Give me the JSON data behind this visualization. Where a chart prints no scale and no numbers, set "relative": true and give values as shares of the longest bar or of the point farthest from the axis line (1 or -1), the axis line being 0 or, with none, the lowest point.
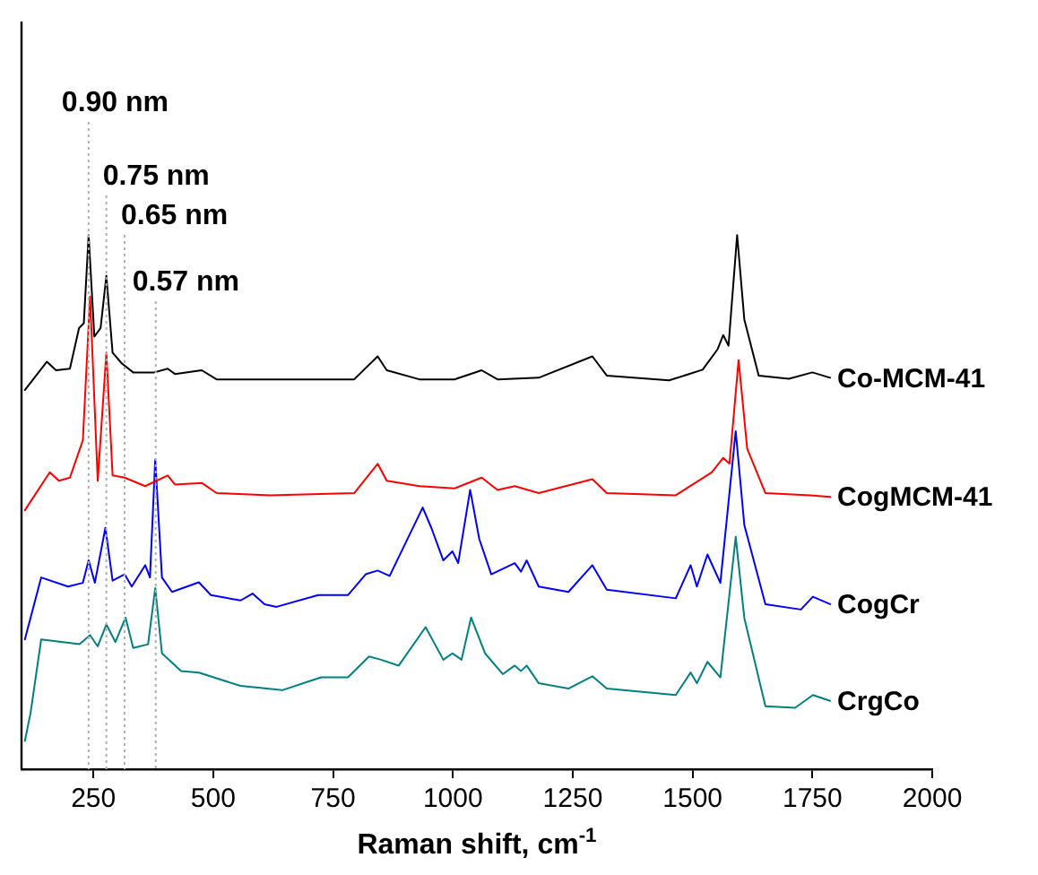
{
  "chart_data": {
    "type": "line",
    "relative": true,
    "xlabel": "Raman shift, cm$^{-1}$",
    "xlim": [
      100,
      2000
    ],
    "xticks": [
      250,
      500,
      750,
      1000,
      1250,
      1500,
      1750,
      2000
    ],
    "grid": false,
    "legend": false,
    "marker": "none",
    "line_style": "solid",
    "ref_lines": [
      {
        "axis": "x",
        "value": 240,
        "label": "0.90 nm",
        "color": "#b0b0b0",
        "line_style": "dotted"
      },
      {
        "axis": "x",
        "value": 277,
        "label": "0.75 nm",
        "color": "#b0b0b0",
        "line_style": "dotted"
      },
      {
        "axis": "x",
        "value": 315,
        "label": "0.65 nm",
        "color": "#b0b0b0",
        "line_style": "dotted"
      },
      {
        "axis": "x",
        "value": 380,
        "label": "0.57 nm",
        "color": "#b0b0b0",
        "line_style": "dotted"
      }
    ],
    "series": [
      {
        "name": "Co-MCM-41",
        "color": "#000000",
        "x": [
          107,
          153,
          172,
          201,
          220,
          230,
          240,
          252,
          265,
          277,
          290,
          309,
          333,
          377,
          405,
          420,
          476,
          507,
          619,
          794,
          843,
          862,
          930,
          1004,
          1060,
          1093,
          1179,
          1291,
          1321,
          1451,
          1521,
          1552,
          1564,
          1575,
          1593,
          1608,
          1638,
          1701,
          1750,
          1787
        ],
        "values": [
          0.71,
          0.763,
          0.747,
          0.75,
          0.826,
          0.835,
          1.0,
          0.81,
          0.826,
          0.924,
          0.78,
          0.76,
          0.743,
          0.743,
          0.75,
          0.74,
          0.747,
          0.73,
          0.73,
          0.73,
          0.773,
          0.747,
          0.73,
          0.73,
          0.747,
          0.73,
          0.733,
          0.773,
          0.737,
          0.728,
          0.748,
          0.786,
          0.813,
          0.793,
          1.0,
          0.842,
          0.737,
          0.731,
          0.743,
          0.733
        ]
      },
      {
        "name": "CogMCM-41",
        "color": "#ff0000",
        "x": [
          107,
          159,
          178,
          201,
          228,
          243,
          259,
          277,
          290,
          315,
          358,
          405,
          420,
          476,
          507,
          619,
          794,
          843,
          862,
          930,
          1004,
          1060,
          1093,
          1129,
          1179,
          1291,
          1321,
          1465,
          1540,
          1564,
          1577,
          1596,
          1614,
          1652,
          1745,
          1787
        ],
        "values": [
          0.485,
          0.556,
          0.54,
          0.546,
          0.616,
          0.885,
          0.54,
          0.78,
          0.55,
          0.546,
          0.53,
          0.55,
          0.533,
          0.536,
          0.517,
          0.513,
          0.517,
          0.572,
          0.54,
          0.53,
          0.526,
          0.546,
          0.523,
          0.53,
          0.517,
          0.543,
          0.517,
          0.513,
          0.556,
          0.583,
          0.572,
          0.766,
          0.6,
          0.517,
          0.513,
          0.51
        ]
      },
      {
        "name": "CogCr",
        "color": "#0000ff",
        "x": [
          107,
          141,
          197,
          228,
          240,
          253,
          275,
          290,
          315,
          330,
          358,
          368,
          379,
          393,
          414,
          470,
          495,
          557,
          582,
          607,
          632,
          719,
          781,
          818,
          843,
          868,
          937,
          955,
          980,
          999,
          1011,
          1036,
          1055,
          1080,
          1129,
          1142,
          1154,
          1179,
          1241,
          1291,
          1321,
          1465,
          1496,
          1509,
          1531,
          1558,
          1590,
          1608,
          1652,
          1726,
          1751,
          1787
        ],
        "values": [
          0.243,
          0.359,
          0.342,
          0.349,
          0.391,
          0.349,
          0.452,
          0.353,
          0.365,
          0.342,
          0.382,
          0.359,
          0.58,
          0.359,
          0.332,
          0.35,
          0.326,
          0.316,
          0.329,
          0.309,
          0.304,
          0.326,
          0.326,
          0.365,
          0.372,
          0.362,
          0.49,
          0.452,
          0.391,
          0.408,
          0.386,
          0.523,
          0.431,
          0.365,
          0.386,
          0.37,
          0.391,
          0.342,
          0.332,
          0.382,
          0.336,
          0.32,
          0.382,
          0.342,
          0.402,
          0.349,
          0.633,
          0.457,
          0.309,
          0.299,
          0.323,
          0.309
        ]
      },
      {
        "name": "CrgCo",
        "color": "#008080",
        "x": [
          107,
          119,
          141,
          221,
          243,
          259,
          277,
          296,
          317,
          333,
          364,
          379,
          393,
          433,
          470,
          557,
          644,
          725,
          781,
          825,
          850,
          887,
          943,
          980,
          999,
          1018,
          1038,
          1067,
          1104,
          1129,
          1142,
          1154,
          1179,
          1241,
          1291,
          1321,
          1465,
          1496,
          1509,
          1531,
          1558,
          1590,
          1608,
          1652,
          1714,
          1751,
          1787
        ],
        "values": [
          0.053,
          0.106,
          0.243,
          0.234,
          0.251,
          0.23,
          0.271,
          0.238,
          0.284,
          0.227,
          0.234,
          0.339,
          0.217,
          0.184,
          0.181,
          0.156,
          0.148,
          0.172,
          0.172,
          0.211,
          0.205,
          0.194,
          0.266,
          0.205,
          0.217,
          0.205,
          0.284,
          0.217,
          0.178,
          0.194,
          0.184,
          0.194,
          0.161,
          0.151,
          0.174,
          0.151,
          0.139,
          0.181,
          0.161,
          0.201,
          0.172,
          0.435,
          0.283,
          0.118,
          0.115,
          0.139,
          0.128
        ]
      }
    ]
  }
}
